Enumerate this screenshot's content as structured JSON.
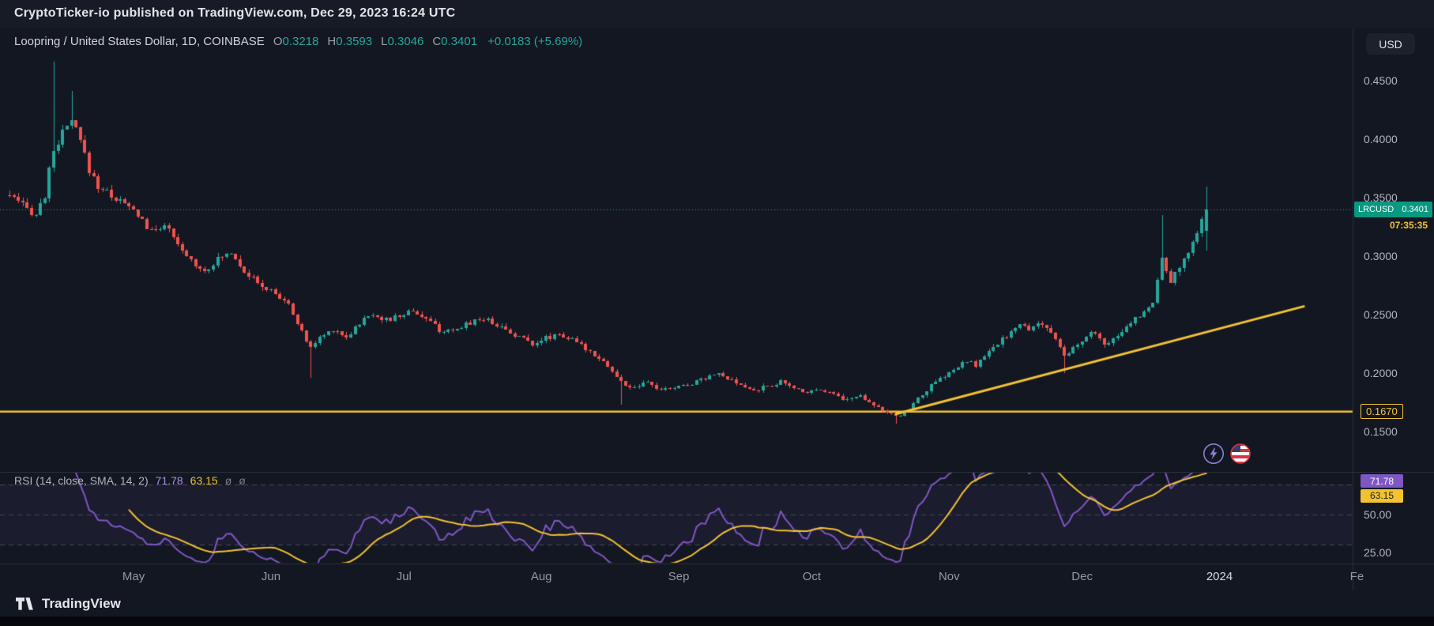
{
  "attribution": "CryptoTicker-io published on TradingView.com, Dec 29, 2023 16:24 UTC",
  "header": {
    "title": "Loopring / United States Dollar, 1D, COINBASE",
    "o_label": "O",
    "o_value": "0.3218",
    "h_label": "H",
    "h_value": "0.3593",
    "l_label": "L",
    "l_value": "0.3046",
    "c_label": "C",
    "c_value": "0.3401",
    "change": "+0.0183 (+5.69%)"
  },
  "currency_button_label": "USD",
  "price_axis_ticks": [
    {
      "label": "0.4500",
      "value": 0.45
    },
    {
      "label": "0.4000",
      "value": 0.4
    },
    {
      "label": "0.3500",
      "value": 0.35
    },
    {
      "label": "0.3000",
      "value": 0.3
    },
    {
      "label": "0.2500",
      "value": 0.25
    },
    {
      "label": "0.2000",
      "value": 0.2
    },
    {
      "label": "0.1500",
      "value": 0.15
    }
  ],
  "price_tag": {
    "symbol": "LRCUSD",
    "price": "0.3401",
    "value": 0.3401,
    "countdown": "07:35:35"
  },
  "hline_tag": {
    "label": "0.1670",
    "value": 0.167
  },
  "rsi_pane": {
    "legend_title": "RSI (14, close, SMA, 14, 2)",
    "rsi_label": "71.78",
    "rsi_value": 71.78,
    "sma_label": "63.15",
    "sma_value": 63.15,
    "extra_1": "ø",
    "extra_2": "ø",
    "axis_ticks": [
      {
        "label": "50.00",
        "value": 50
      },
      {
        "label": "25.00",
        "value": 25
      }
    ],
    "band_levels": [
      70,
      50,
      30
    ]
  },
  "time_axis": [
    {
      "label": "May",
      "day": 28
    },
    {
      "label": "Jun",
      "day": 59
    },
    {
      "label": "Jul",
      "day": 89
    },
    {
      "label": "Aug",
      "day": 120
    },
    {
      "label": "Sep",
      "day": 151
    },
    {
      "label": "Oct",
      "day": 181
    },
    {
      "label": "Nov",
      "day": 212
    },
    {
      "label": "Dec",
      "day": 242
    },
    {
      "label": "2024",
      "day": 273,
      "highlight": true
    },
    {
      "label": "Fe",
      "day": 304
    }
  ],
  "footer": {
    "logo_text": "TradingView"
  },
  "colors": {
    "background": "#131722",
    "up": "#26a69a",
    "down": "#ef5350",
    "yellow": "#f2c230",
    "purple": "#7e57c2",
    "teal_tag": "#089981",
    "dashed_level": "#464b57"
  },
  "chart_data": {
    "type": "candlestick",
    "pair": "LRCUSD",
    "exchange": "COINBASE",
    "interval": "1D",
    "price_axis_range": [
      0.15,
      0.45
    ],
    "x_axis_months": [
      "May",
      "Jun",
      "Jul",
      "Aug",
      "Sep",
      "Oct",
      "Nov",
      "Dec",
      "2024",
      "Fe"
    ],
    "last_candle": {
      "open": 0.3218,
      "high": 0.3593,
      "low": 0.3046,
      "close": 0.3401
    },
    "change_abs": 0.0183,
    "change_pct": 5.69,
    "horizontal_line_price": 0.167,
    "last_close_price": 0.3401,
    "trendline": {
      "from_day": 200,
      "from_price": 0.165,
      "to_day": 292,
      "to_price": 0.257
    },
    "anchors": [
      [
        0,
        0.352
      ],
      [
        2,
        0.345
      ],
      [
        4,
        0.34
      ],
      [
        6,
        0.336
      ],
      [
        8,
        0.352
      ],
      [
        10,
        0.392
      ],
      [
        12,
        0.404
      ],
      [
        14,
        0.415
      ],
      [
        16,
        0.398
      ],
      [
        18,
        0.374
      ],
      [
        20,
        0.36
      ],
      [
        23,
        0.352
      ],
      [
        26,
        0.344
      ],
      [
        29,
        0.336
      ],
      [
        32,
        0.32
      ],
      [
        35,
        0.328
      ],
      [
        38,
        0.308
      ],
      [
        41,
        0.296
      ],
      [
        44,
        0.288
      ],
      [
        47,
        0.297
      ],
      [
        50,
        0.304
      ],
      [
        53,
        0.288
      ],
      [
        56,
        0.276
      ],
      [
        59,
        0.27
      ],
      [
        62,
        0.262
      ],
      [
        64,
        0.252
      ],
      [
        66,
        0.234
      ],
      [
        68,
        0.222
      ],
      [
        70,
        0.23
      ],
      [
        73,
        0.238
      ],
      [
        76,
        0.231
      ],
      [
        79,
        0.243
      ],
      [
        82,
        0.251
      ],
      [
        85,
        0.245
      ],
      [
        88,
        0.249
      ],
      [
        91,
        0.254
      ],
      [
        94,
        0.246
      ],
      [
        97,
        0.237
      ],
      [
        100,
        0.234
      ],
      [
        103,
        0.242
      ],
      [
        106,
        0.247
      ],
      [
        109,
        0.244
      ],
      [
        112,
        0.237
      ],
      [
        115,
        0.231
      ],
      [
        118,
        0.226
      ],
      [
        121,
        0.23
      ],
      [
        124,
        0.234
      ],
      [
        127,
        0.228
      ],
      [
        130,
        0.221
      ],
      [
        133,
        0.214
      ],
      [
        135,
        0.206
      ],
      [
        138,
        0.192
      ],
      [
        141,
        0.187
      ],
      [
        144,
        0.192
      ],
      [
        147,
        0.185
      ],
      [
        150,
        0.188
      ],
      [
        153,
        0.19
      ],
      [
        156,
        0.195
      ],
      [
        159,
        0.2
      ],
      [
        162,
        0.195
      ],
      [
        165,
        0.189
      ],
      [
        168,
        0.185
      ],
      [
        171,
        0.189
      ],
      [
        174,
        0.192
      ],
      [
        177,
        0.187
      ],
      [
        180,
        0.184
      ],
      [
        183,
        0.187
      ],
      [
        186,
        0.182
      ],
      [
        189,
        0.177
      ],
      [
        192,
        0.181
      ],
      [
        194,
        0.176
      ],
      [
        196,
        0.171
      ],
      [
        198,
        0.166
      ],
      [
        200,
        0.162
      ],
      [
        202,
        0.167
      ],
      [
        204,
        0.174
      ],
      [
        206,
        0.182
      ],
      [
        208,
        0.189
      ],
      [
        210,
        0.195
      ],
      [
        212,
        0.2
      ],
      [
        214,
        0.205
      ],
      [
        216,
        0.21
      ],
      [
        218,
        0.207
      ],
      [
        220,
        0.214
      ],
      [
        222,
        0.221
      ],
      [
        224,
        0.229
      ],
      [
        226,
        0.235
      ],
      [
        228,
        0.241
      ],
      [
        230,
        0.237
      ],
      [
        232,
        0.244
      ],
      [
        234,
        0.239
      ],
      [
        236,
        0.227
      ],
      [
        238,
        0.214
      ],
      [
        240,
        0.221
      ],
      [
        242,
        0.227
      ],
      [
        244,
        0.234
      ],
      [
        246,
        0.229
      ],
      [
        248,
        0.224
      ],
      [
        250,
        0.231
      ],
      [
        252,
        0.239
      ],
      [
        254,
        0.247
      ],
      [
        256,
        0.253
      ],
      [
        258,
        0.262
      ],
      [
        259,
        0.28
      ],
      [
        260,
        0.296
      ],
      [
        261,
        0.288
      ],
      [
        262,
        0.279
      ],
      [
        264,
        0.289
      ],
      [
        266,
        0.304
      ],
      [
        267,
        0.314
      ],
      [
        268,
        0.322
      ],
      [
        269,
        0.331
      ],
      [
        270,
        0.3401
      ]
    ],
    "wick_overrides": {
      "10": {
        "high": 0.466
      },
      "14": {
        "high": 0.441
      },
      "68": {
        "low": 0.196
      },
      "138": {
        "low": 0.173
      },
      "200": {
        "low": 0.157
      },
      "238": {
        "low": 0.2
      },
      "260": {
        "high": 0.335
      }
    },
    "rsi": {
      "period": 14,
      "sma_period": 14,
      "last_rsi": 71.78,
      "last_sma": 63.15
    }
  }
}
